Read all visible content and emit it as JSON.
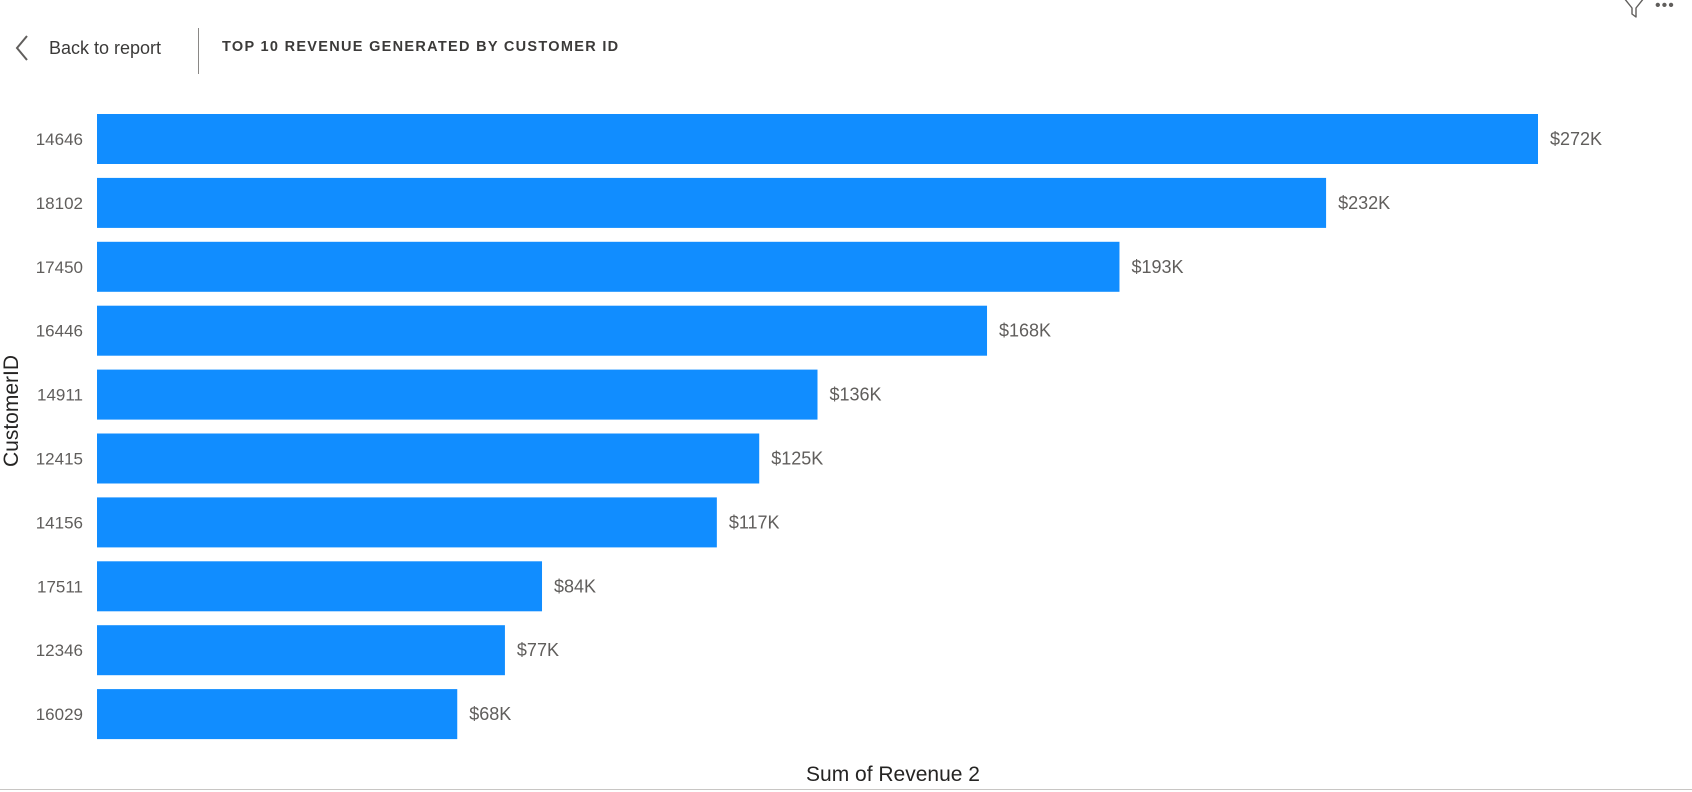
{
  "header": {
    "back_label": "Back to report",
    "title": "TOP 10 REVENUE GENERATED BY CUSTOMER ID"
  },
  "icons": {
    "back": "chevron-left-icon",
    "filter": "filter-icon",
    "more": "more-options-icon"
  },
  "colors": {
    "bar": "#118DFF",
    "text": "#252423",
    "label": "#605E5C"
  },
  "chart_data": {
    "type": "bar",
    "orientation": "horizontal",
    "categories": [
      "14646",
      "18102",
      "17450",
      "16446",
      "14911",
      "12415",
      "14156",
      "17511",
      "12346",
      "16029"
    ],
    "values": [
      272,
      232,
      193,
      168,
      136,
      125,
      117,
      84,
      77,
      68
    ],
    "data_labels": [
      "$272K",
      "$232K",
      "$193K",
      "$168K",
      "$136K",
      "$125K",
      "$117K",
      "$84K",
      "$77K",
      "$68K"
    ],
    "unit": "$K",
    "title": "TOP 10 REVENUE GENERATED BY CUSTOMER ID",
    "xlabel": "Sum of Revenue 2",
    "ylabel": "CustomerID",
    "xlim": [
      0,
      272
    ],
    "grid": false,
    "legend": "none"
  }
}
